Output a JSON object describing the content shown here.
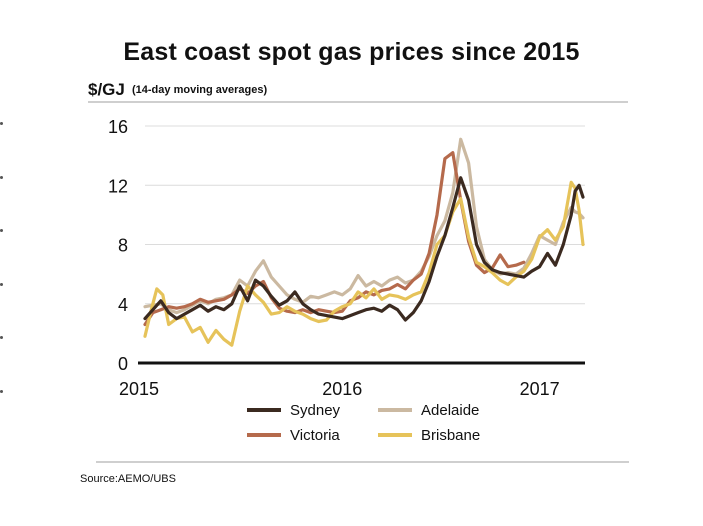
{
  "title": "East coast spot gas prices since 2015",
  "unit": "$/GJ",
  "unit_note": "(14-day moving averages)",
  "source": "Source:AEMO/UBS",
  "colors": {
    "Sydney": "#3b2a20",
    "Adelaide": "#cbb9a1",
    "Victoria": "#b56a4c",
    "Brisbane": "#e6c35a",
    "axis": "#111111",
    "rules": "#cfcfcf"
  },
  "chart_data": {
    "type": "line",
    "title": "East coast spot gas prices since 2015",
    "ylabel": "$/GJ",
    "ylim": [
      0,
      16
    ],
    "yticks": [
      0,
      4,
      8,
      12,
      16
    ],
    "xlim": [
      2015.0,
      2017.22
    ],
    "xticks": [
      {
        "value": 2015,
        "label": "2015"
      },
      {
        "value": 2016,
        "label": "2016"
      },
      {
        "value": 2017,
        "label": "2017"
      }
    ],
    "grid": true,
    "legend_position": "bottom",
    "series": [
      {
        "name": "Sydney",
        "points": [
          [
            2015.0,
            3.0
          ],
          [
            2015.04,
            3.6
          ],
          [
            2015.08,
            4.2
          ],
          [
            2015.12,
            3.4
          ],
          [
            2015.16,
            3.0
          ],
          [
            2015.2,
            3.3
          ],
          [
            2015.24,
            3.6
          ],
          [
            2015.28,
            3.9
          ],
          [
            2015.32,
            3.5
          ],
          [
            2015.36,
            3.8
          ],
          [
            2015.4,
            3.6
          ],
          [
            2015.44,
            4.0
          ],
          [
            2015.48,
            5.2
          ],
          [
            2015.52,
            4.2
          ],
          [
            2015.56,
            5.6
          ],
          [
            2015.6,
            5.2
          ],
          [
            2015.64,
            4.5
          ],
          [
            2015.68,
            3.9
          ],
          [
            2015.72,
            4.2
          ],
          [
            2015.76,
            4.8
          ],
          [
            2015.8,
            4.0
          ],
          [
            2015.84,
            3.6
          ],
          [
            2015.88,
            3.3
          ],
          [
            2015.92,
            3.2
          ],
          [
            2015.96,
            3.1
          ],
          [
            2016.0,
            3.0
          ],
          [
            2016.04,
            3.2
          ],
          [
            2016.08,
            3.4
          ],
          [
            2016.12,
            3.6
          ],
          [
            2016.16,
            3.7
          ],
          [
            2016.2,
            3.5
          ],
          [
            2016.24,
            3.9
          ],
          [
            2016.28,
            3.6
          ],
          [
            2016.32,
            2.9
          ],
          [
            2016.36,
            3.4
          ],
          [
            2016.4,
            4.2
          ],
          [
            2016.44,
            5.5
          ],
          [
            2016.48,
            7.2
          ],
          [
            2016.52,
            8.6
          ],
          [
            2016.56,
            10.5
          ],
          [
            2016.6,
            12.5
          ],
          [
            2016.64,
            11.0
          ],
          [
            2016.68,
            8.0
          ],
          [
            2016.72,
            6.8
          ],
          [
            2016.76,
            6.3
          ],
          [
            2016.8,
            6.1
          ],
          [
            2016.84,
            6.0
          ],
          [
            2016.88,
            5.9
          ],
          [
            2016.92,
            5.8
          ],
          [
            2016.96,
            6.2
          ],
          [
            2017.0,
            6.5
          ],
          [
            2017.04,
            7.4
          ],
          [
            2017.08,
            6.6
          ],
          [
            2017.12,
            8.0
          ],
          [
            2017.16,
            10.0
          ],
          [
            2017.18,
            11.6
          ],
          [
            2017.2,
            12.0
          ],
          [
            2017.22,
            11.2
          ]
        ]
      },
      {
        "name": "Adelaide",
        "points": [
          [
            2015.0,
            3.8
          ],
          [
            2015.04,
            3.9
          ],
          [
            2015.08,
            4.0
          ],
          [
            2015.12,
            3.6
          ],
          [
            2015.16,
            3.4
          ],
          [
            2015.2,
            3.6
          ],
          [
            2015.24,
            3.9
          ],
          [
            2015.28,
            4.2
          ],
          [
            2015.32,
            4.0
          ],
          [
            2015.36,
            4.3
          ],
          [
            2015.4,
            4.4
          ],
          [
            2015.44,
            4.6
          ],
          [
            2015.48,
            5.6
          ],
          [
            2015.52,
            5.2
          ],
          [
            2015.56,
            6.2
          ],
          [
            2015.6,
            6.9
          ],
          [
            2015.64,
            5.8
          ],
          [
            2015.68,
            5.2
          ],
          [
            2015.72,
            4.6
          ],
          [
            2015.76,
            4.3
          ],
          [
            2015.8,
            4.1
          ],
          [
            2015.84,
            4.5
          ],
          [
            2015.88,
            4.4
          ],
          [
            2015.92,
            4.6
          ],
          [
            2015.96,
            4.8
          ],
          [
            2016.0,
            4.6
          ],
          [
            2016.04,
            5.0
          ],
          [
            2016.08,
            5.9
          ],
          [
            2016.12,
            5.2
          ],
          [
            2016.16,
            5.5
          ],
          [
            2016.2,
            5.2
          ],
          [
            2016.24,
            5.6
          ],
          [
            2016.28,
            5.8
          ],
          [
            2016.32,
            5.4
          ],
          [
            2016.36,
            5.6
          ],
          [
            2016.4,
            6.2
          ],
          [
            2016.44,
            7.2
          ],
          [
            2016.48,
            8.6
          ],
          [
            2016.52,
            9.6
          ],
          [
            2016.56,
            11.5
          ],
          [
            2016.6,
            15.1
          ],
          [
            2016.64,
            13.5
          ],
          [
            2016.68,
            9.2
          ],
          [
            2016.72,
            7.0
          ],
          [
            2016.76,
            6.3
          ],
          [
            2016.8,
            6.0
          ],
          [
            2016.84,
            6.1
          ],
          [
            2016.88,
            6.0
          ],
          [
            2016.92,
            6.4
          ],
          [
            2016.96,
            7.4
          ],
          [
            2017.0,
            8.6
          ],
          [
            2017.04,
            8.3
          ],
          [
            2017.08,
            8.0
          ],
          [
            2017.12,
            9.5
          ],
          [
            2017.16,
            10.5
          ],
          [
            2017.18,
            10.2
          ],
          [
            2017.2,
            10.1
          ],
          [
            2017.22,
            9.8
          ]
        ]
      },
      {
        "name": "Victoria",
        "points": [
          [
            2015.0,
            2.6
          ],
          [
            2015.04,
            3.4
          ],
          [
            2015.08,
            3.6
          ],
          [
            2015.12,
            3.8
          ],
          [
            2015.16,
            3.7
          ],
          [
            2015.2,
            3.8
          ],
          [
            2015.24,
            4.0
          ],
          [
            2015.28,
            4.3
          ],
          [
            2015.32,
            4.1
          ],
          [
            2015.36,
            4.2
          ],
          [
            2015.4,
            4.3
          ],
          [
            2015.44,
            4.6
          ],
          [
            2015.48,
            5.0
          ],
          [
            2015.52,
            4.7
          ],
          [
            2015.56,
            5.2
          ],
          [
            2015.6,
            5.5
          ],
          [
            2015.64,
            4.4
          ],
          [
            2015.68,
            3.7
          ],
          [
            2015.72,
            3.5
          ],
          [
            2015.76,
            3.4
          ],
          [
            2015.8,
            3.6
          ],
          [
            2015.84,
            3.4
          ],
          [
            2015.88,
            3.6
          ],
          [
            2015.92,
            3.5
          ],
          [
            2015.96,
            3.4
          ],
          [
            2016.0,
            3.5
          ],
          [
            2016.04,
            4.2
          ],
          [
            2016.08,
            4.4
          ],
          [
            2016.12,
            4.8
          ],
          [
            2016.16,
            4.6
          ],
          [
            2016.2,
            4.9
          ],
          [
            2016.24,
            5.0
          ],
          [
            2016.28,
            5.3
          ],
          [
            2016.32,
            5.0
          ],
          [
            2016.36,
            5.6
          ],
          [
            2016.4,
            6.0
          ],
          [
            2016.44,
            7.4
          ],
          [
            2016.48,
            10.0
          ],
          [
            2016.52,
            13.8
          ],
          [
            2016.56,
            14.2
          ],
          [
            2016.6,
            11.0
          ],
          [
            2016.64,
            8.2
          ],
          [
            2016.68,
            6.6
          ],
          [
            2016.72,
            6.1
          ],
          [
            2016.76,
            6.4
          ],
          [
            2016.8,
            7.3
          ],
          [
            2016.84,
            6.5
          ],
          [
            2016.88,
            6.6
          ],
          [
            2016.92,
            6.8
          ]
        ]
      },
      {
        "name": "Brisbane",
        "points": [
          [
            2015.0,
            1.8
          ],
          [
            2015.03,
            3.5
          ],
          [
            2015.06,
            5.0
          ],
          [
            2015.09,
            4.6
          ],
          [
            2015.12,
            2.6
          ],
          [
            2015.16,
            3.0
          ],
          [
            2015.2,
            3.1
          ],
          [
            2015.24,
            2.1
          ],
          [
            2015.28,
            2.4
          ],
          [
            2015.32,
            1.4
          ],
          [
            2015.36,
            2.2
          ],
          [
            2015.4,
            1.6
          ],
          [
            2015.44,
            1.2
          ],
          [
            2015.48,
            3.5
          ],
          [
            2015.52,
            5.2
          ],
          [
            2015.56,
            4.6
          ],
          [
            2015.6,
            4.1
          ],
          [
            2015.64,
            3.3
          ],
          [
            2015.68,
            3.4
          ],
          [
            2015.72,
            3.8
          ],
          [
            2015.76,
            3.5
          ],
          [
            2015.8,
            3.3
          ],
          [
            2015.84,
            3.0
          ],
          [
            2015.88,
            2.8
          ],
          [
            2015.92,
            2.9
          ],
          [
            2015.96,
            3.5
          ],
          [
            2016.0,
            3.8
          ],
          [
            2016.04,
            4.0
          ],
          [
            2016.08,
            4.8
          ],
          [
            2016.12,
            4.4
          ],
          [
            2016.16,
            5.0
          ],
          [
            2016.2,
            4.3
          ],
          [
            2016.24,
            4.6
          ],
          [
            2016.28,
            4.5
          ],
          [
            2016.32,
            4.3
          ],
          [
            2016.36,
            4.6
          ],
          [
            2016.4,
            4.8
          ],
          [
            2016.44,
            6.1
          ],
          [
            2016.48,
            8.0
          ],
          [
            2016.52,
            8.6
          ],
          [
            2016.56,
            10.2
          ],
          [
            2016.6,
            11.1
          ],
          [
            2016.64,
            8.5
          ],
          [
            2016.68,
            6.8
          ],
          [
            2016.72,
            6.5
          ],
          [
            2016.76,
            6.1
          ],
          [
            2016.8,
            5.6
          ],
          [
            2016.84,
            5.3
          ],
          [
            2016.88,
            5.8
          ],
          [
            2016.92,
            6.2
          ],
          [
            2016.96,
            7.0
          ],
          [
            2017.0,
            8.5
          ],
          [
            2017.04,
            9.0
          ],
          [
            2017.08,
            8.3
          ],
          [
            2017.12,
            9.2
          ],
          [
            2017.16,
            12.2
          ],
          [
            2017.18,
            11.8
          ],
          [
            2017.2,
            10.3
          ],
          [
            2017.22,
            8.0
          ]
        ]
      }
    ]
  }
}
